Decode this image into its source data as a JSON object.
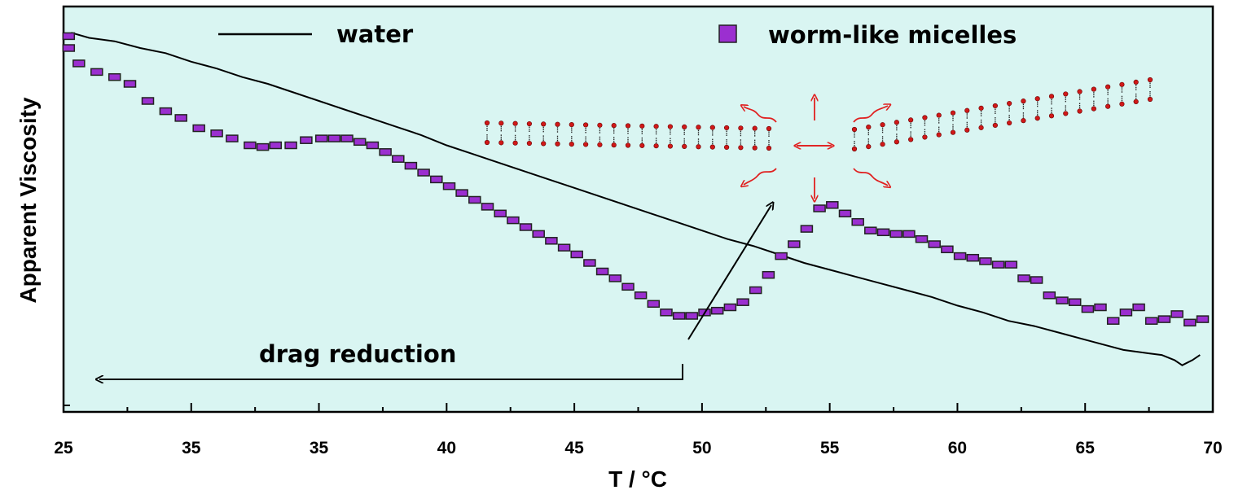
{
  "chart_data": {
    "type": "line",
    "title": "",
    "xlabel": "T / °C",
    "ylabel": "Apparent Viscosity",
    "x_ticks": [
      "25",
      "35",
      "35",
      "40",
      "45",
      "50",
      "55",
      "60",
      "65",
      "70"
    ],
    "xlim": [
      25,
      70
    ],
    "ylim": [
      0,
      100
    ],
    "y_ticks_labeled": false,
    "grid": false,
    "legend_position": "top",
    "background_color": "#d9f5f2",
    "colors": {
      "water": "#000000",
      "micelles_fill": "#9b2fd0",
      "micelles_edge": "#222222",
      "micelle_heads": "#d01818",
      "arrows_red": "#e02020"
    },
    "annotations": {
      "drag_reduction": "drag reduction"
    },
    "series": [
      {
        "name": "water",
        "style": "line",
        "x": [
          25.3,
          26,
          27,
          28,
          29,
          30,
          31,
          32,
          33,
          34,
          35,
          36,
          37,
          38,
          39,
          40,
          41,
          42,
          43,
          44,
          45,
          46,
          47,
          48,
          49,
          50,
          51,
          52,
          53,
          54,
          55,
          56,
          57,
          58,
          59,
          60,
          61,
          62,
          63,
          64,
          65,
          66,
          66.5,
          67,
          67.5,
          68,
          68.5,
          68.8,
          69.2,
          69.5
        ],
        "y": [
          99.0,
          97.5,
          96.5,
          94.5,
          93.0,
          90.5,
          88.5,
          86.0,
          84.0,
          81.5,
          79.0,
          76.5,
          74.0,
          71.5,
          69.0,
          66.0,
          63.5,
          61.0,
          58.5,
          56.0,
          53.5,
          51.0,
          48.5,
          46.0,
          43.5,
          41.0,
          38.5,
          36.5,
          34.0,
          31.5,
          29.5,
          27.5,
          25.5,
          23.5,
          21.5,
          19.0,
          17.0,
          14.5,
          13.0,
          11.0,
          9.0,
          7.0,
          6.0,
          5.5,
          5.0,
          4.5,
          3.0,
          1.5,
          3.0,
          4.5
        ]
      },
      {
        "name": "worm-like micelles",
        "style": "markers",
        "x": [
          25.2,
          25.2,
          25.6,
          26.3,
          27.0,
          27.6,
          28.3,
          29.0,
          29.6,
          30.3,
          31.0,
          31.6,
          32.3,
          32.8,
          33.3,
          33.9,
          34.5,
          35.1,
          35.6,
          36.1,
          36.6,
          37.1,
          37.6,
          38.1,
          38.6,
          39.1,
          39.6,
          40.1,
          40.6,
          41.1,
          41.6,
          42.1,
          42.6,
          43.1,
          43.6,
          44.1,
          44.6,
          45.1,
          45.6,
          46.1,
          46.6,
          47.1,
          47.6,
          48.1,
          48.6,
          49.1,
          49.6,
          50.1,
          50.6,
          51.1,
          51.6,
          52.1,
          52.6,
          53.1,
          53.6,
          54.1,
          54.6,
          55.1,
          55.6,
          56.1,
          56.6,
          57.1,
          57.6,
          58.1,
          58.6,
          59.1,
          59.6,
          60.1,
          60.6,
          61.1,
          61.6,
          62.1,
          62.6,
          63.1,
          63.6,
          64.1,
          64.6,
          65.1,
          65.6,
          66.1,
          66.6,
          67.1,
          67.6,
          68.1,
          68.6,
          69.1,
          69.6
        ],
        "y": [
          98.0,
          94.5,
          90.0,
          87.5,
          86.0,
          84.0,
          79.0,
          76.0,
          74.0,
          71.0,
          69.5,
          68.0,
          66.0,
          65.5,
          66.0,
          66.0,
          67.5,
          68.0,
          68.0,
          68.0,
          67.0,
          66.0,
          64.0,
          62.0,
          60.0,
          58.0,
          56.0,
          54.0,
          52.0,
          50.0,
          48.0,
          46.0,
          44.0,
          42.0,
          40.0,
          38.0,
          36.0,
          34.0,
          31.5,
          29.0,
          27.0,
          24.5,
          22.0,
          19.5,
          17.0,
          16.0,
          16.0,
          17.0,
          17.5,
          18.5,
          20.0,
          23.5,
          28.0,
          33.5,
          37.0,
          41.5,
          47.5,
          48.5,
          46.0,
          43.5,
          41.0,
          40.5,
          40.0,
          40.0,
          38.5,
          37.0,
          35.5,
          33.5,
          33.0,
          32.0,
          31.0,
          31.0,
          27.0,
          26.5,
          22.0,
          20.5,
          20.0,
          18.0,
          18.5,
          14.5,
          17.0,
          18.5,
          14.5,
          15.0,
          16.5,
          14.0,
          15.0
        ]
      }
    ]
  }
}
